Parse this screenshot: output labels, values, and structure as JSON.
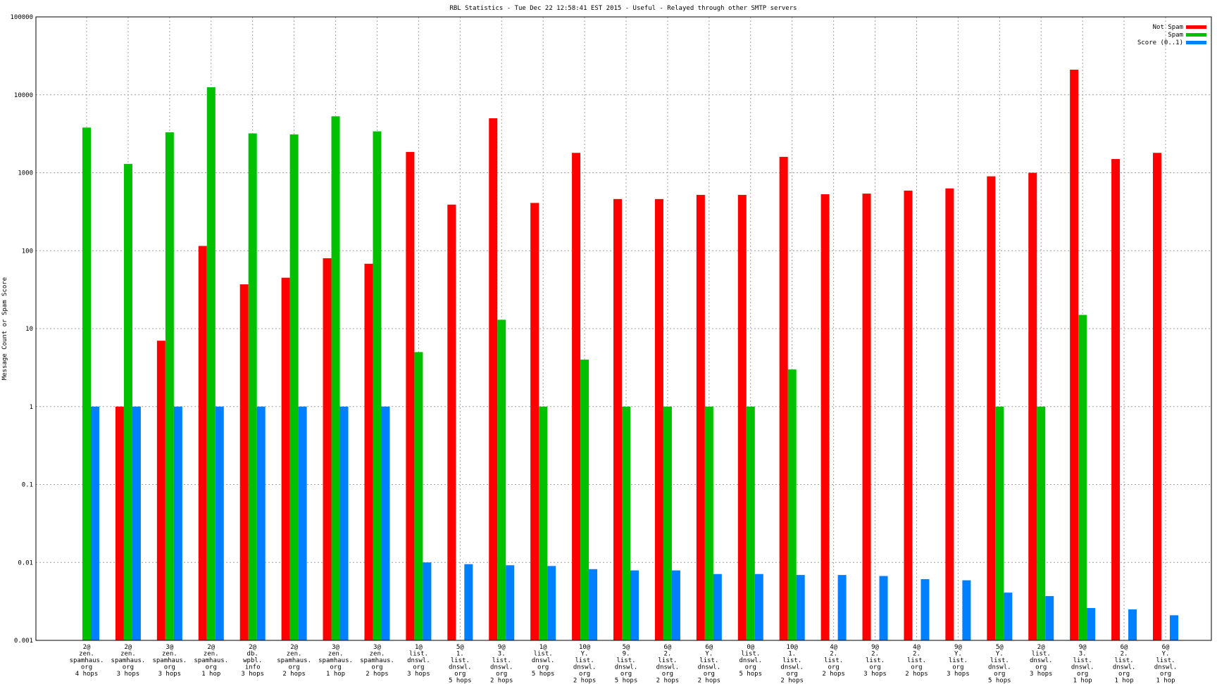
{
  "chart_data": {
    "type": "bar",
    "title": "RBL Statistics - Tue Dec 22 12:58:41 EST 2015 - Useful - Relayed through other SMTP servers",
    "ylabel": "Message Count or Spam Score",
    "xlabel": "",
    "yscale": "log",
    "ylim": [
      0.001,
      100000
    ],
    "yticks": [
      "100000",
      "10000",
      "1000",
      "100",
      "10",
      "1",
      "0.1",
      "0.01",
      "0.001"
    ],
    "grid": true,
    "legend_position": "top-right",
    "categories": [
      [
        "2@",
        "zen.",
        "spamhaus.",
        "org",
        "4 hops"
      ],
      [
        "2@",
        "zen.",
        "spamhaus.",
        "org",
        "3 hops"
      ],
      [
        "3@",
        "zen.",
        "spamhaus.",
        "org",
        "3 hops"
      ],
      [
        "2@",
        "zen.",
        "spamhaus.",
        "org",
        "1 hop"
      ],
      [
        "2@",
        "db.",
        "wpbl.",
        "info",
        "3 hops"
      ],
      [
        "2@",
        "zen.",
        "spamhaus.",
        "org",
        "2 hops"
      ],
      [
        "3@",
        "zen.",
        "spamhaus.",
        "org",
        "1 hop"
      ],
      [
        "3@",
        "zen.",
        "spamhaus.",
        "org",
        "2 hops"
      ],
      [
        "1@",
        "list.",
        "dnswl.",
        "org",
        "3 hops"
      ],
      [
        "5@",
        "1.",
        "list.",
        "dnswl.",
        "org",
        "5 hops"
      ],
      [
        "9@",
        "3.",
        "list.",
        "dnswl.",
        "org",
        "2 hops"
      ],
      [
        "1@",
        "list.",
        "dnswl.",
        "org",
        "5 hops"
      ],
      [
        "10@",
        "Y.",
        "list.",
        "dnswl.",
        "org",
        "2 hops"
      ],
      [
        "5@",
        "9.",
        "list.",
        "dnswl.",
        "org",
        "5 hops"
      ],
      [
        "6@",
        "2.",
        "list.",
        "dnswl.",
        "org",
        "2 hops"
      ],
      [
        "6@",
        "Y.",
        "list.",
        "dnswl.",
        "org",
        "2 hops"
      ],
      [
        "0@",
        "list.",
        "dnswl.",
        "org",
        "5 hops"
      ],
      [
        "10@",
        "1.",
        "list.",
        "dnswl.",
        "org",
        "2 hops"
      ],
      [
        "4@",
        "2.",
        "list.",
        "org",
        "2 hops"
      ],
      [
        "9@",
        "2.",
        "list.",
        "org",
        "3 hops"
      ],
      [
        "4@",
        "2.",
        "list.",
        "org",
        "2 hops"
      ],
      [
        "9@",
        "Y.",
        "list.",
        "org",
        "3 hops"
      ],
      [
        "5@",
        "Y.",
        "list.",
        "dnswl.",
        "org",
        "5 hops"
      ],
      [
        "2@",
        "list.",
        "dnswl.",
        "org",
        "3 hops"
      ],
      [
        "9@",
        "3.",
        "list.",
        "dnswl.",
        "org",
        "1 hop"
      ],
      [
        "6@",
        "2.",
        "list.",
        "dnswl.",
        "org",
        "1 hop"
      ],
      [
        "6@",
        "Y.",
        "list.",
        "dnswl.",
        "org",
        "1 hop"
      ]
    ],
    "series": [
      {
        "name": "Not Spam",
        "color": "#ff0000",
        "values": [
          null,
          1,
          7,
          115,
          37,
          45,
          80,
          68,
          1850,
          390,
          5000,
          410,
          1800,
          460,
          460,
          520,
          520,
          1600,
          530,
          540,
          590,
          630,
          900,
          1000,
          21000,
          1500,
          1800
        ]
      },
      {
        "name": "Spam",
        "color": "#00c000",
        "values": [
          3800,
          1300,
          3300,
          12500,
          3200,
          3100,
          5300,
          3400,
          5,
          null,
          13,
          1,
          4,
          1,
          1,
          1,
          1,
          3,
          null,
          null,
          null,
          null,
          1,
          1,
          15,
          null,
          null
        ]
      },
      {
        "name": "Score (0..1)",
        "color": "#0080ff",
        "values": [
          1,
          1,
          1,
          1,
          1,
          1,
          1,
          1,
          0.01,
          0.0095,
          0.0092,
          0.009,
          0.0082,
          0.0079,
          0.0079,
          0.0071,
          0.0071,
          0.0069,
          0.0069,
          0.0067,
          0.0061,
          0.0059,
          0.0041,
          0.0037,
          0.0026,
          0.0025,
          0.0021
        ]
      }
    ]
  }
}
